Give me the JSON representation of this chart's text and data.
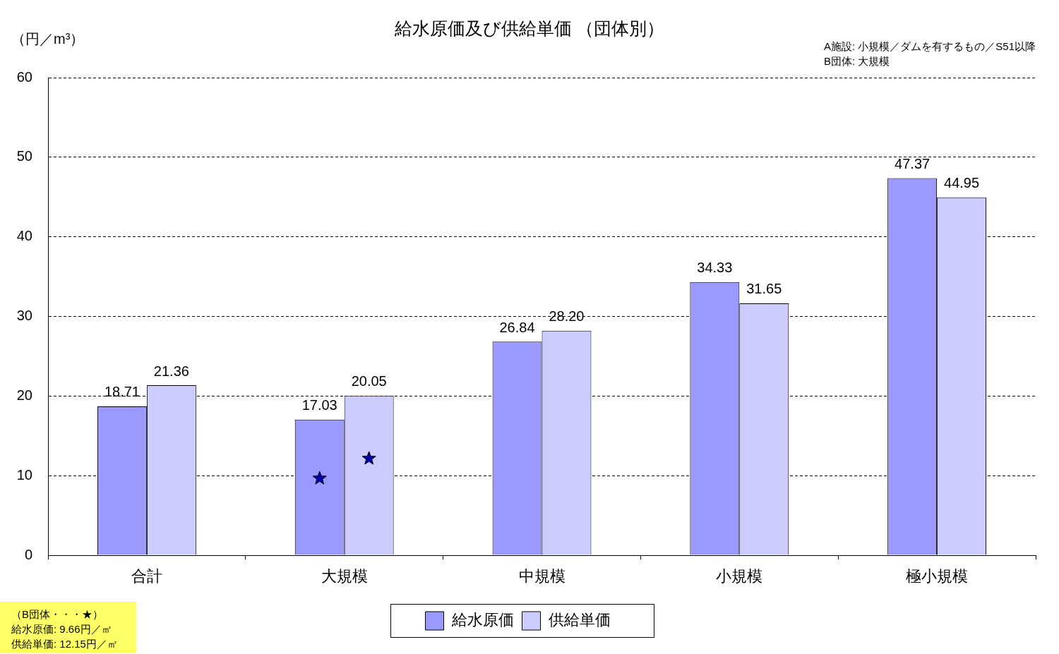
{
  "chart_data": {
    "type": "bar",
    "title": "給水原価及び供給単価 （団体別）",
    "ylabel": "（円／m³）",
    "annotations": [
      "A施設: 小規模／ダムを有するもの／S51以降",
      "B団体: 大規模",
      "（B団体・・・★）",
      "給水原価: 9.66円／㎡",
      "供給単価: 12.15円／㎡"
    ],
    "categories": [
      "合計",
      "大規模",
      "中規模",
      "小規模",
      "極小規模"
    ],
    "series": [
      {
        "name": "給水原価",
        "color": "#9999ff",
        "values": [
          18.71,
          17.03,
          26.84,
          34.33,
          47.37
        ],
        "value_labels": [
          "18.71",
          "17.03",
          "26.84",
          "34.33",
          "47.37"
        ]
      },
      {
        "name": "供給単価",
        "color": "#ccccff",
        "values": [
          21.36,
          20.05,
          28.2,
          31.65,
          44.95
        ],
        "value_labels": [
          "21.36",
          "20.05",
          "28.20",
          "31.65",
          "44.95"
        ]
      },
      {
        "type": "scatter",
        "x": [
          "大規模",
          "大規模"
        ],
        "values": [
          9.66,
          12.15
        ],
        "color": "#0000aa",
        "marker": "star"
      }
    ],
    "ylim": [
      0,
      60
    ],
    "yticks": [
      0,
      10,
      20,
      30,
      40,
      50,
      60
    ],
    "grid": "y",
    "legend": "bottom"
  }
}
